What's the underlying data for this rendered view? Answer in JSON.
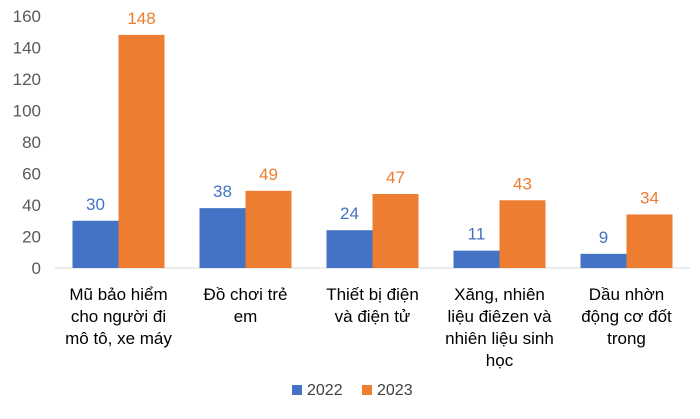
{
  "chart_data": {
    "type": "bar",
    "categories": [
      [
        "Mũ bảo hiểm",
        "cho người đi",
        "mô tô, xe máy"
      ],
      [
        "Đồ chơi trẻ",
        "em"
      ],
      [
        "Thiết bị điện",
        "và điện tử"
      ],
      [
        "Xăng, nhiên",
        "liệu điêzen và",
        "nhiên liệu sinh",
        "học"
      ],
      [
        "Dầu nhờn",
        "động cơ đốt",
        "trong"
      ]
    ],
    "series": [
      {
        "name": "2022",
        "color": "#4472C4",
        "values": [
          30,
          38,
          24,
          11,
          9
        ]
      },
      {
        "name": "2023",
        "color": "#ED7D31",
        "values": [
          148,
          49,
          47,
          43,
          34
        ]
      }
    ],
    "ylim": [
      0,
      160
    ],
    "yticks": [
      0,
      20,
      40,
      60,
      80,
      100,
      120,
      140,
      160
    ],
    "grid": false,
    "legend": "bottom",
    "data_labels": true
  }
}
